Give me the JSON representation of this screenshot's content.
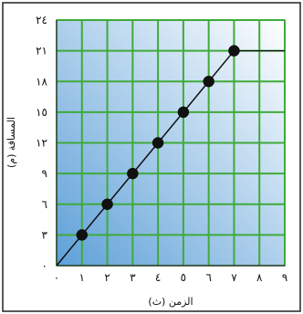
{
  "chart_data": {
    "type": "line",
    "ylabel": "المسافة (م)",
    "xlabel": "الزمن (ث)",
    "x_ticks": [
      "٠",
      "١",
      "٢",
      "٣",
      "٤",
      "٥",
      "٦",
      "٧",
      "٨",
      "٩"
    ],
    "y_ticks": [
      "٠",
      "٣",
      "٦",
      "٩",
      "١٢",
      "١٥",
      "١٨",
      "٢١",
      "٢٤"
    ],
    "xlim": [
      0,
      9
    ],
    "ylim": [
      0,
      24
    ],
    "grid": true,
    "x": [
      0,
      1,
      2,
      3,
      4,
      5,
      6,
      7
    ],
    "y": [
      0,
      3,
      6,
      9,
      12,
      15,
      18,
      21
    ],
    "marked_x": [
      1,
      2,
      3,
      4,
      5,
      6,
      7
    ],
    "marked_y": [
      3,
      6,
      9,
      12,
      15,
      18,
      21
    ],
    "colors": {
      "grid": "#3faa3a",
      "line": "#111111",
      "point": "#111111",
      "background_top": "#ffffff",
      "background_bottom": "#5ea0d8",
      "frame": "#222222"
    }
  }
}
